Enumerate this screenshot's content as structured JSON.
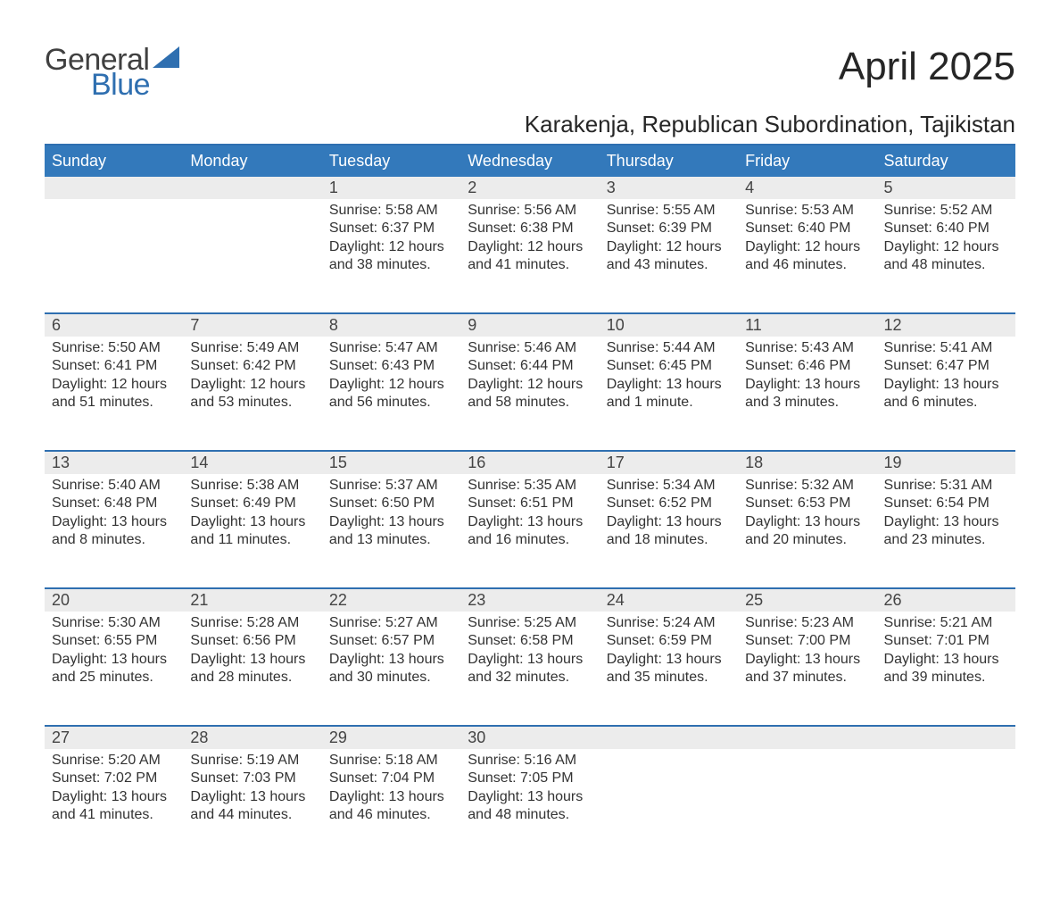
{
  "brand": {
    "word1": "General",
    "word2": "Blue",
    "sail_color": "#2f6fb0"
  },
  "title": "April 2025",
  "subtitle": "Karakenja, Republican Subordination, Tajikistan",
  "header_bg": "#3379bb",
  "header_fg": "#ffffff",
  "week_divider_color": "#2f6fb0",
  "daynum_bg": "#ececec",
  "text_color": "#333333",
  "day_names": [
    "Sunday",
    "Monday",
    "Tuesday",
    "Wednesday",
    "Thursday",
    "Friday",
    "Saturday"
  ],
  "weeks": [
    [
      null,
      null,
      {
        "n": "1",
        "sr": "Sunrise: 5:58 AM",
        "ss": "Sunset: 6:37 PM",
        "d1": "Daylight: 12 hours",
        "d2": "and 38 minutes."
      },
      {
        "n": "2",
        "sr": "Sunrise: 5:56 AM",
        "ss": "Sunset: 6:38 PM",
        "d1": "Daylight: 12 hours",
        "d2": "and 41 minutes."
      },
      {
        "n": "3",
        "sr": "Sunrise: 5:55 AM",
        "ss": "Sunset: 6:39 PM",
        "d1": "Daylight: 12 hours",
        "d2": "and 43 minutes."
      },
      {
        "n": "4",
        "sr": "Sunrise: 5:53 AM",
        "ss": "Sunset: 6:40 PM",
        "d1": "Daylight: 12 hours",
        "d2": "and 46 minutes."
      },
      {
        "n": "5",
        "sr": "Sunrise: 5:52 AM",
        "ss": "Sunset: 6:40 PM",
        "d1": "Daylight: 12 hours",
        "d2": "and 48 minutes."
      }
    ],
    [
      {
        "n": "6",
        "sr": "Sunrise: 5:50 AM",
        "ss": "Sunset: 6:41 PM",
        "d1": "Daylight: 12 hours",
        "d2": "and 51 minutes."
      },
      {
        "n": "7",
        "sr": "Sunrise: 5:49 AM",
        "ss": "Sunset: 6:42 PM",
        "d1": "Daylight: 12 hours",
        "d2": "and 53 minutes."
      },
      {
        "n": "8",
        "sr": "Sunrise: 5:47 AM",
        "ss": "Sunset: 6:43 PM",
        "d1": "Daylight: 12 hours",
        "d2": "and 56 minutes."
      },
      {
        "n": "9",
        "sr": "Sunrise: 5:46 AM",
        "ss": "Sunset: 6:44 PM",
        "d1": "Daylight: 12 hours",
        "d2": "and 58 minutes."
      },
      {
        "n": "10",
        "sr": "Sunrise: 5:44 AM",
        "ss": "Sunset: 6:45 PM",
        "d1": "Daylight: 13 hours",
        "d2": "and 1 minute."
      },
      {
        "n": "11",
        "sr": "Sunrise: 5:43 AM",
        "ss": "Sunset: 6:46 PM",
        "d1": "Daylight: 13 hours",
        "d2": "and 3 minutes."
      },
      {
        "n": "12",
        "sr": "Sunrise: 5:41 AM",
        "ss": "Sunset: 6:47 PM",
        "d1": "Daylight: 13 hours",
        "d2": "and 6 minutes."
      }
    ],
    [
      {
        "n": "13",
        "sr": "Sunrise: 5:40 AM",
        "ss": "Sunset: 6:48 PM",
        "d1": "Daylight: 13 hours",
        "d2": "and 8 minutes."
      },
      {
        "n": "14",
        "sr": "Sunrise: 5:38 AM",
        "ss": "Sunset: 6:49 PM",
        "d1": "Daylight: 13 hours",
        "d2": "and 11 minutes."
      },
      {
        "n": "15",
        "sr": "Sunrise: 5:37 AM",
        "ss": "Sunset: 6:50 PM",
        "d1": "Daylight: 13 hours",
        "d2": "and 13 minutes."
      },
      {
        "n": "16",
        "sr": "Sunrise: 5:35 AM",
        "ss": "Sunset: 6:51 PM",
        "d1": "Daylight: 13 hours",
        "d2": "and 16 minutes."
      },
      {
        "n": "17",
        "sr": "Sunrise: 5:34 AM",
        "ss": "Sunset: 6:52 PM",
        "d1": "Daylight: 13 hours",
        "d2": "and 18 minutes."
      },
      {
        "n": "18",
        "sr": "Sunrise: 5:32 AM",
        "ss": "Sunset: 6:53 PM",
        "d1": "Daylight: 13 hours",
        "d2": "and 20 minutes."
      },
      {
        "n": "19",
        "sr": "Sunrise: 5:31 AM",
        "ss": "Sunset: 6:54 PM",
        "d1": "Daylight: 13 hours",
        "d2": "and 23 minutes."
      }
    ],
    [
      {
        "n": "20",
        "sr": "Sunrise: 5:30 AM",
        "ss": "Sunset: 6:55 PM",
        "d1": "Daylight: 13 hours",
        "d2": "and 25 minutes."
      },
      {
        "n": "21",
        "sr": "Sunrise: 5:28 AM",
        "ss": "Sunset: 6:56 PM",
        "d1": "Daylight: 13 hours",
        "d2": "and 28 minutes."
      },
      {
        "n": "22",
        "sr": "Sunrise: 5:27 AM",
        "ss": "Sunset: 6:57 PM",
        "d1": "Daylight: 13 hours",
        "d2": "and 30 minutes."
      },
      {
        "n": "23",
        "sr": "Sunrise: 5:25 AM",
        "ss": "Sunset: 6:58 PM",
        "d1": "Daylight: 13 hours",
        "d2": "and 32 minutes."
      },
      {
        "n": "24",
        "sr": "Sunrise: 5:24 AM",
        "ss": "Sunset: 6:59 PM",
        "d1": "Daylight: 13 hours",
        "d2": "and 35 minutes."
      },
      {
        "n": "25",
        "sr": "Sunrise: 5:23 AM",
        "ss": "Sunset: 7:00 PM",
        "d1": "Daylight: 13 hours",
        "d2": "and 37 minutes."
      },
      {
        "n": "26",
        "sr": "Sunrise: 5:21 AM",
        "ss": "Sunset: 7:01 PM",
        "d1": "Daylight: 13 hours",
        "d2": "and 39 minutes."
      }
    ],
    [
      {
        "n": "27",
        "sr": "Sunrise: 5:20 AM",
        "ss": "Sunset: 7:02 PM",
        "d1": "Daylight: 13 hours",
        "d2": "and 41 minutes."
      },
      {
        "n": "28",
        "sr": "Sunrise: 5:19 AM",
        "ss": "Sunset: 7:03 PM",
        "d1": "Daylight: 13 hours",
        "d2": "and 44 minutes."
      },
      {
        "n": "29",
        "sr": "Sunrise: 5:18 AM",
        "ss": "Sunset: 7:04 PM",
        "d1": "Daylight: 13 hours",
        "d2": "and 46 minutes."
      },
      {
        "n": "30",
        "sr": "Sunrise: 5:16 AM",
        "ss": "Sunset: 7:05 PM",
        "d1": "Daylight: 13 hours",
        "d2": "and 48 minutes."
      },
      null,
      null,
      null
    ]
  ]
}
